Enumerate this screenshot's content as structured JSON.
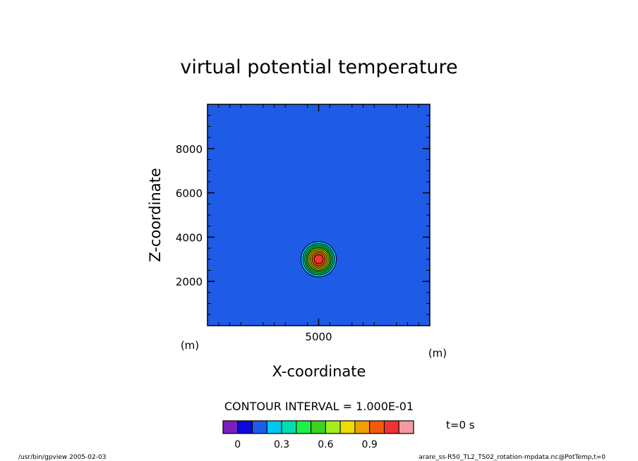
{
  "chart_data": {
    "type": "heatmap",
    "title": "virtual potential temperature",
    "xlabel": "X-coordinate",
    "ylabel": "Z-coordinate",
    "x_unit": "(m)",
    "y_unit": "(m)",
    "xlim": [
      0,
      10000
    ],
    "ylim": [
      0,
      10000
    ],
    "x_ticks": [
      {
        "value": 5000,
        "label": "5000"
      }
    ],
    "y_ticks": [
      {
        "value": 2000,
        "label": "2000"
      },
      {
        "value": 4000,
        "label": "4000"
      },
      {
        "value": 6000,
        "label": "6000"
      },
      {
        "value": 8000,
        "label": "8000"
      }
    ],
    "contour_interval_text": "CONTOUR INTERVAL = 1.000E-01",
    "time_label": "t=0 s",
    "field": {
      "background_value": 0,
      "bubble_center": [
        5000,
        3000
      ],
      "bubble_radius": 1000,
      "peak_value": 1.0
    },
    "colorbar": {
      "colors": [
        "#7a1fb8",
        "#0a0adc",
        "#1e5be6",
        "#00c8f0",
        "#00dcb4",
        "#1ef04a",
        "#3cd21e",
        "#a0f01e",
        "#f0dc00",
        "#f0a000",
        "#f05a0a",
        "#f03232",
        "#f59aa0"
      ],
      "boundaries": [
        -0.1,
        0.0,
        0.1,
        0.2,
        0.3,
        0.4,
        0.5,
        0.6,
        0.7,
        0.8,
        0.9,
        1.0
      ],
      "tick_labels": [
        {
          "boundary_index": 1,
          "label": "0"
        },
        {
          "boundary_index": 4,
          "label": "0.3"
        },
        {
          "boundary_index": 7,
          "label": "0.6"
        },
        {
          "boundary_index": 10,
          "label": "0.9"
        }
      ]
    }
  },
  "footer": {
    "left": "/usr/bin/gpview  2005-02-03",
    "right": "arare_ss-R50_TL2_TS02_rotation-mpdata.nc@PotTemp,t=0"
  }
}
